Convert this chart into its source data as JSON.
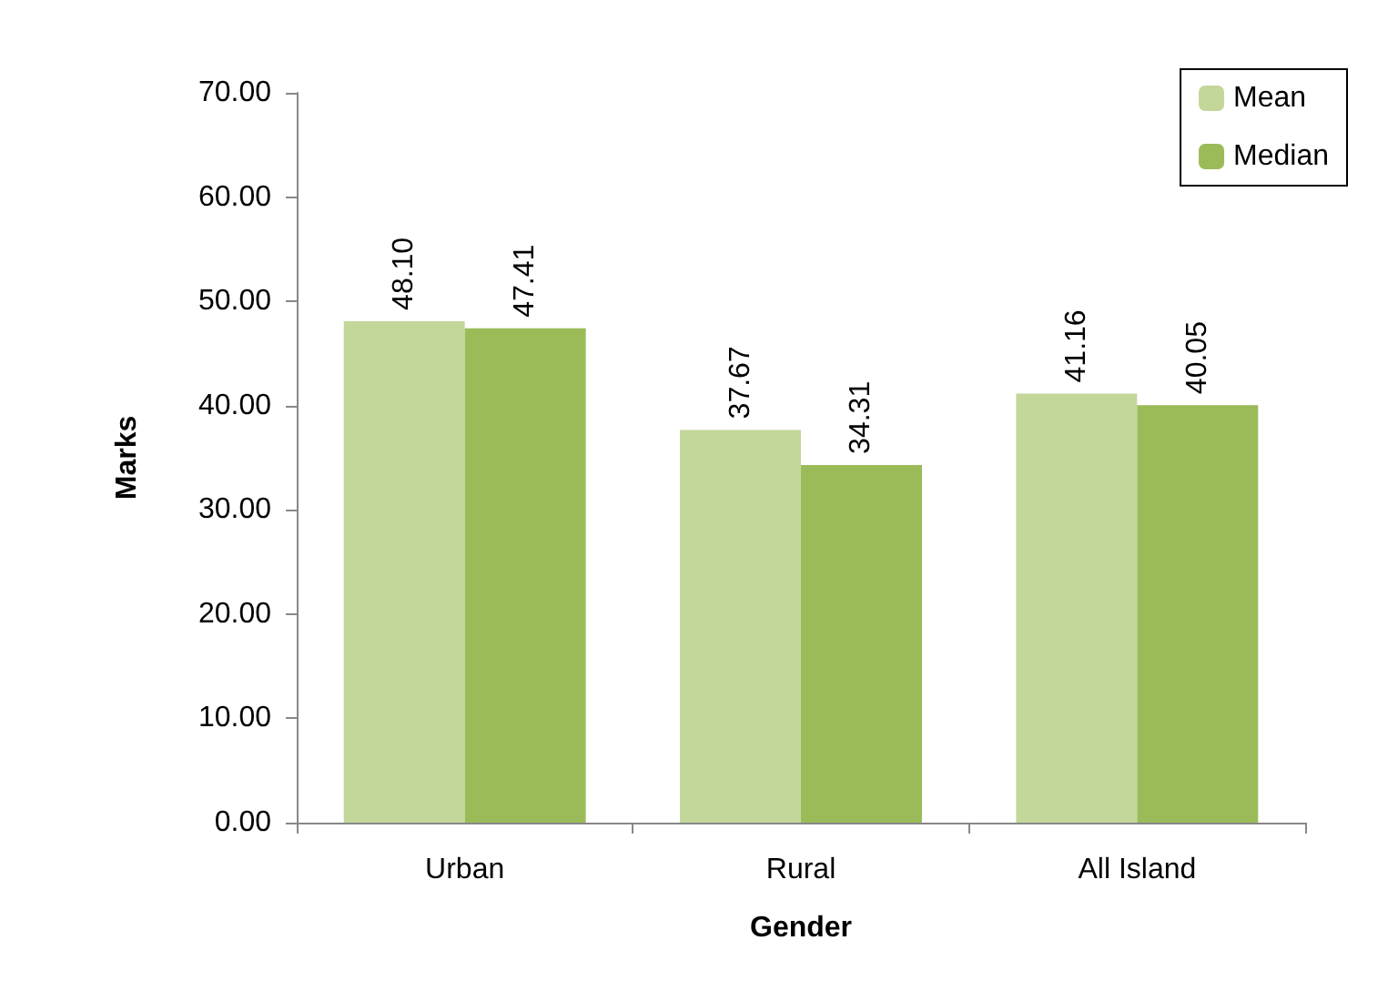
{
  "chart_data": {
    "type": "bar",
    "xlabel": "Gender",
    "ylabel": "Marks",
    "categories": [
      "Urban",
      "Rural",
      "All Island"
    ],
    "series": [
      {
        "name": "Mean",
        "color": "#c4d79b",
        "values": [
          48.1,
          37.67,
          41.16
        ],
        "value_labels": [
          "48.10",
          "37.67",
          "41.16"
        ]
      },
      {
        "name": "Median",
        "color": "#9bbb59",
        "values": [
          47.41,
          34.31,
          40.05
        ],
        "value_labels": [
          "47.41",
          "34.31",
          "40.05"
        ]
      }
    ],
    "ylim": [
      0,
      70
    ],
    "yticks": [
      {
        "value": 0,
        "label": "0.00"
      },
      {
        "value": 10,
        "label": "10.00"
      },
      {
        "value": 20,
        "label": "20.00"
      },
      {
        "value": 30,
        "label": "30.00"
      },
      {
        "value": 40,
        "label": "40.00"
      },
      {
        "value": 50,
        "label": "50.00"
      },
      {
        "value": 60,
        "label": "60.00"
      },
      {
        "value": 70,
        "label": "70.00"
      }
    ],
    "grid": false,
    "legend": "top right"
  }
}
